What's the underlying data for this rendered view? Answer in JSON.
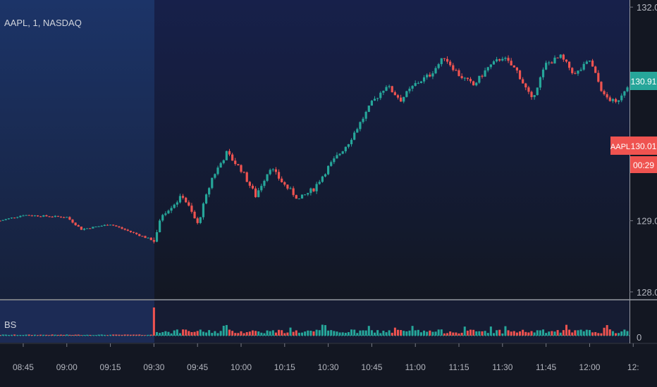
{
  "symbol_title": "AAPL, 1, NASDAQ",
  "indicator_label": "BS",
  "colors": {
    "up": "#26a69a",
    "down": "#ef5350",
    "background": "#131722",
    "premarket_shade": "#1c3468",
    "axis_text": "#b2b5be",
    "divider": "#9598a1"
  },
  "price_axis": {
    "ticks": [
      "132.00",
      "129.00",
      "128.00"
    ],
    "range": [
      127.9,
      132.1
    ]
  },
  "price_badges": {
    "last_price": "130.91",
    "symbol_badge": "AAPL",
    "symbol_price": "130.01",
    "countdown": "00:29"
  },
  "volume_axis": {
    "zero_label": "0"
  },
  "time_axis": {
    "ticks": [
      "08:45",
      "09:00",
      "09:15",
      "09:30",
      "09:45",
      "10:00",
      "10:15",
      "10:30",
      "10:45",
      "11:00",
      "11:15",
      "11:30",
      "11:45",
      "12:00",
      "12:"
    ]
  },
  "chart_data": {
    "type": "candlestick",
    "instrument": "AAPL",
    "interval": "1",
    "exchange": "NASDAQ",
    "x_start": "08:37",
    "x_end": "12:13",
    "session_open": "09:30",
    "ylim": [
      127.9,
      132.1
    ],
    "close_path": [
      [
        "08:37",
        129.0
      ],
      [
        "08:45",
        129.08
      ],
      [
        "09:00",
        129.05
      ],
      [
        "09:05",
        128.88
      ],
      [
        "09:15",
        128.95
      ],
      [
        "09:30",
        128.72
      ],
      [
        "09:33",
        129.1
      ],
      [
        "09:40",
        129.35
      ],
      [
        "09:45",
        128.95
      ],
      [
        "09:50",
        129.6
      ],
      [
        "09:55",
        129.95
      ],
      [
        "10:00",
        129.72
      ],
      [
        "10:05",
        129.35
      ],
      [
        "10:10",
        129.75
      ],
      [
        "10:15",
        129.5
      ],
      [
        "10:20",
        129.3
      ],
      [
        "10:25",
        129.45
      ],
      [
        "10:30",
        129.75
      ],
      [
        "10:37",
        130.1
      ],
      [
        "10:45",
        130.65
      ],
      [
        "10:50",
        130.9
      ],
      [
        "10:55",
        130.7
      ],
      [
        "11:00",
        130.92
      ],
      [
        "11:05",
        131.05
      ],
      [
        "11:10",
        131.3
      ],
      [
        "11:15",
        131.05
      ],
      [
        "11:20",
        130.9
      ],
      [
        "11:25",
        131.15
      ],
      [
        "11:30",
        131.3
      ],
      [
        "11:35",
        131.1
      ],
      [
        "11:40",
        130.7
      ],
      [
        "11:45",
        131.2
      ],
      [
        "11:50",
        131.3
      ],
      [
        "11:55",
        131.05
      ],
      [
        "12:00",
        131.25
      ],
      [
        "12:05",
        130.75
      ],
      [
        "12:09",
        130.65
      ],
      [
        "12:13",
        130.91
      ]
    ],
    "series": [
      {
        "name": "BS",
        "panel": "volume",
        "baseline": 0,
        "note_spike_at": "09:30"
      }
    ]
  }
}
